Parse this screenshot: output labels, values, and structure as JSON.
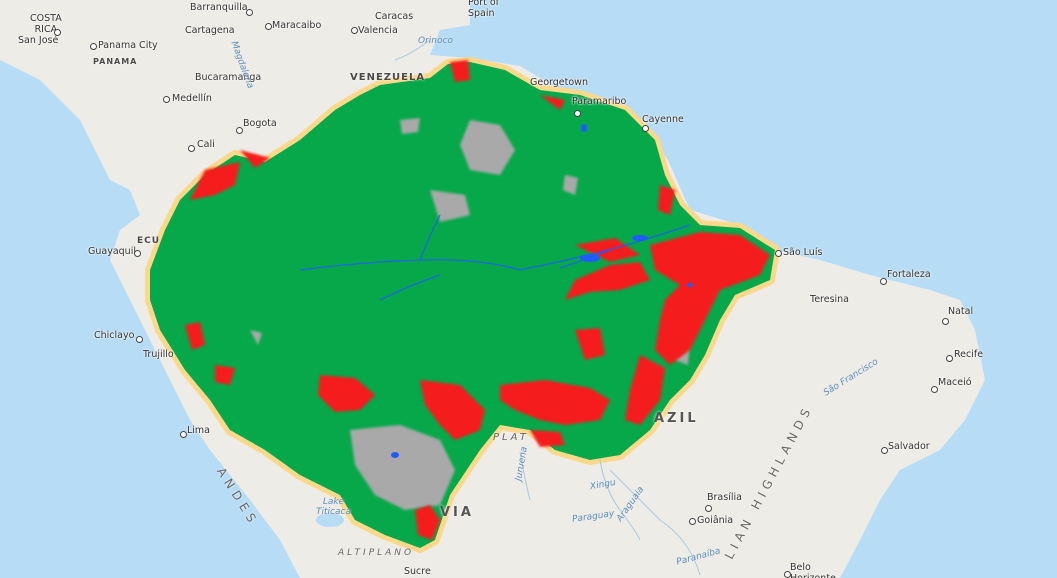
{
  "map": {
    "colors": {
      "ocean": "#b7dcf5",
      "land": "#eeece6",
      "forest": "#06a84a",
      "deforested": "#f41c1c",
      "non_forest": "#a9a9a9",
      "water": "#1f5cff",
      "boundary": "#fbd88a"
    }
  },
  "labels": {
    "costa_rica": "COSTA\nRICA",
    "san_jose": "San José",
    "panama_city": "Panama City",
    "panama": "PANAMA",
    "barranquilla": "Barranquilla",
    "cartagena": "Cartagena",
    "maracaibo": "Maracaibo",
    "caracas": "Caracas",
    "valencia": "Valencia",
    "port_of_spain": "Port of\nSpain",
    "bucaramanga": "Bucaramanga",
    "medellin": "Medellín",
    "bogota": "Bogota",
    "cali": "Cali",
    "venezuela": "VENEZUELA",
    "georgetown": "Georgetown",
    "paramaribo": "Paramaribo",
    "cayenne": "Cayenne",
    "guayaquil": "Guayaquil",
    "ecuador_partial": "ECU",
    "sao_luis": "São Luís",
    "fortaleza": "Fortaleza",
    "teresina": "Teresina",
    "natal": "Natal",
    "recife": "Recife",
    "maceio": "Maceió",
    "chiclayo": "Chiclayo",
    "trujillo": "Trujillo",
    "lima": "Lima",
    "salvador": "Salvador",
    "brazil_partial": "AZIL",
    "andes": "ANDES",
    "brasilia": "Brasília",
    "goiania": "Goiânia",
    "highlands": "LIAN HIGHLANDS",
    "bolivia_partial": "VIA",
    "altiplano": "ALTIPLANO",
    "sucre": "Sucre",
    "belo_horizonte": "Belo\nHorizonte",
    "lake_titicaca": "Lake\nTiticaca",
    "plateau_partial": "PLAT",
    "orinoco": "Orinoco",
    "magdalena": "Magdalena",
    "xingu": "Xingu",
    "paraguay_river": "Paraguay",
    "araguaia": "Araguaia",
    "sao_francisco": "São Francisco",
    "paranaiba": "Paranaíba",
    "juruena": "Juruena"
  }
}
